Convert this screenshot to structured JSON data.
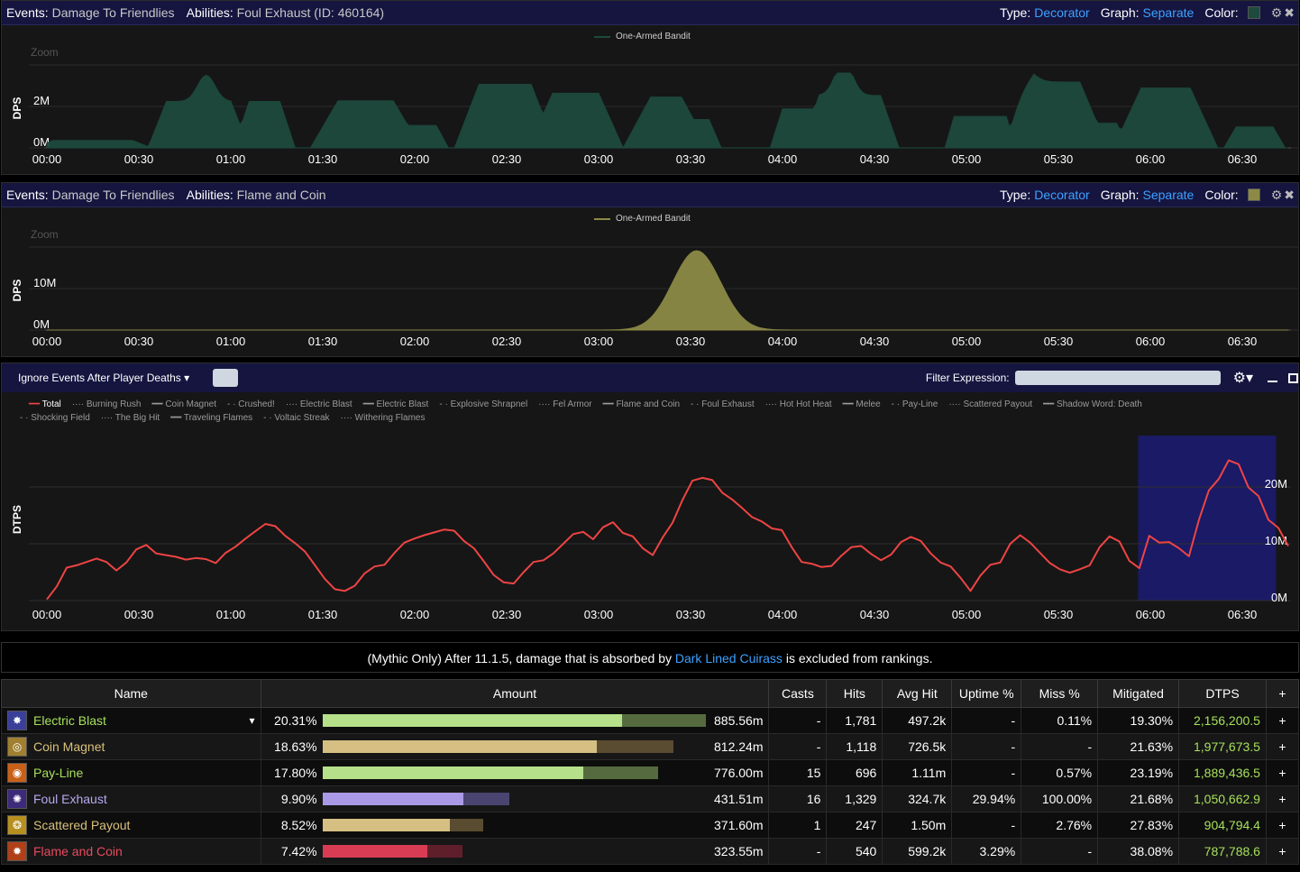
{
  "graph1": {
    "events_label": "Events:",
    "events_value": "Damage To Friendlies",
    "abilities_label": "Abilities:",
    "abilities_value": "Foul Exhaust (ID: 460164)",
    "type_label": "Type:",
    "type_value": "Decorator",
    "graph_label": "Graph:",
    "graph_value": "Separate",
    "color_label": "Color:",
    "color_hex": "#1d4a3c",
    "legend": "One-Armed Bandit",
    "zoom": "Zoom",
    "ylabel": "DPS",
    "yticks": [
      "2M",
      "0M"
    ],
    "xticks": [
      "00:00",
      "00:30",
      "01:00",
      "01:30",
      "02:00",
      "02:30",
      "03:00",
      "03:30",
      "04:00",
      "04:30",
      "05:00",
      "05:30",
      "06:00",
      "06:30"
    ]
  },
  "graph2": {
    "events_label": "Events:",
    "events_value": "Damage To Friendlies",
    "abilities_label": "Abilities:",
    "abilities_value": "Flame and Coin",
    "type_label": "Type:",
    "type_value": "Decorator",
    "graph_label": "Graph:",
    "graph_value": "Separate",
    "color_label": "Color:",
    "color_hex": "#8c8a45",
    "legend": "One-Armed Bandit",
    "zoom": "Zoom",
    "ylabel": "DPS",
    "yticks": [
      "10M",
      "0M"
    ],
    "xticks": [
      "00:00",
      "00:30",
      "01:00",
      "01:30",
      "02:00",
      "02:30",
      "03:00",
      "03:30",
      "04:00",
      "04:30",
      "05:00",
      "05:30",
      "06:00",
      "06:30"
    ]
  },
  "dtps": {
    "ignore_label": "Ignore Events After Player Deaths",
    "filter_label": "Filter Expression:",
    "ylabel": "DTPS",
    "yticks": [
      "20M",
      "10M",
      "0M"
    ],
    "legend_row1": [
      "Total",
      "Burning Rush",
      "Coin Magnet",
      "Crushed!",
      "Electric Blast",
      "Electric Blast",
      "Explosive Shrapnel",
      "Fel Armor",
      "Flame and Coin",
      "Foul Exhaust",
      "Hot Hot Heat",
      "Melee",
      "Pay-Line",
      "Scattered Payout",
      "Shadow Word: Death"
    ],
    "legend_row2": [
      "Shocking Field",
      "The Big Hit",
      "Traveling Flames",
      "Voltaic Streak",
      "Withering Flames"
    ],
    "line_color": "#ee4444",
    "highlight_color": "#1a1a66",
    "xticks": [
      "00:00",
      "00:30",
      "01:00",
      "01:30",
      "02:00",
      "02:30",
      "03:00",
      "03:30",
      "04:00",
      "04:30",
      "05:00",
      "05:30",
      "06:00",
      "06:30"
    ]
  },
  "notice": {
    "before": "(Mythic Only) After 11.1.5, damage that is absorbed by",
    "link": "Dark Lined Cuirass",
    "after": "is excluded from rankings."
  },
  "table": {
    "headers": [
      "Name",
      "Amount",
      "Casts",
      "Hits",
      "Avg Hit",
      "Uptime %",
      "Miss %",
      "Mitigated",
      "DTPS",
      "+"
    ],
    "rows": [
      {
        "name": "Electric Blast",
        "name_color": "#a6e05a",
        "icon": "blast-icon",
        "pct": "20.31%",
        "fill": 0.783,
        "total": 1.0,
        "bar_color": "#b6e08a",
        "bar_dark": "#556b3f",
        "amount": "885.56m",
        "casts": "-",
        "hits": "1,781",
        "avg": "497.2k",
        "uptime": "-",
        "miss": "0.11%",
        "mitigated": "19.30%",
        "dtps": "2,156,200.5",
        "plus": "+"
      },
      {
        "name": "Coin Magnet",
        "name_color": "#d8c07a",
        "icon": "coin-icon",
        "pct": "18.63%",
        "fill": 0.716,
        "total": 0.917,
        "bar_color": "#d6bf82",
        "bar_dark": "#5a4c30",
        "amount": "812.24m",
        "casts": "-",
        "hits": "1,118",
        "avg": "726.5k",
        "uptime": "-",
        "miss": "-",
        "mitigated": "21.63%",
        "dtps": "1,977,673.5",
        "plus": "+"
      },
      {
        "name": "Pay-Line",
        "name_color": "#a6e05a",
        "icon": "payline-icon",
        "pct": "17.80%",
        "fill": 0.682,
        "total": 0.876,
        "bar_color": "#b6e08a",
        "bar_dark": "#556b3f",
        "amount": "776.00m",
        "casts": "15",
        "hits": "696",
        "avg": "1.11m",
        "uptime": "-",
        "miss": "0.57%",
        "mitigated": "23.19%",
        "dtps": "1,889,436.5",
        "plus": "+"
      },
      {
        "name": "Foul Exhaust",
        "name_color": "#b9a9ef",
        "icon": "exhaust-icon",
        "pct": "9.90%",
        "fill": 0.369,
        "total": 0.487,
        "bar_color": "#aa99e6",
        "bar_dark": "#4a4470",
        "amount": "431.51m",
        "casts": "16",
        "hits": "1,329",
        "avg": "324.7k",
        "uptime": "29.94%",
        "miss": "100.00%",
        "mitigated": "21.68%",
        "dtps": "1,050,662.9",
        "plus": "+"
      },
      {
        "name": "Scattered Payout",
        "name_color": "#d8c07a",
        "icon": "payout-icon",
        "pct": "8.52%",
        "fill": 0.334,
        "total": 0.419,
        "bar_color": "#d6bf82",
        "bar_dark": "#5a4c30",
        "amount": "371.60m",
        "casts": "1",
        "hits": "247",
        "avg": "1.50m",
        "uptime": "-",
        "miss": "2.76%",
        "mitigated": "27.83%",
        "dtps": "904,794.4",
        "plus": "+"
      },
      {
        "name": "Flame and Coin",
        "name_color": "#e84a5f",
        "icon": "flame-icon",
        "pct": "7.42%",
        "fill": 0.275,
        "total": 0.365,
        "bar_color": "#d83c55",
        "bar_dark": "#5e1f2a",
        "amount": "323.55m",
        "casts": "-",
        "hits": "540",
        "avg": "599.2k",
        "uptime": "3.29%",
        "miss": "-",
        "mitigated": "38.08%",
        "dtps": "787,788.6",
        "plus": "+"
      }
    ]
  }
}
